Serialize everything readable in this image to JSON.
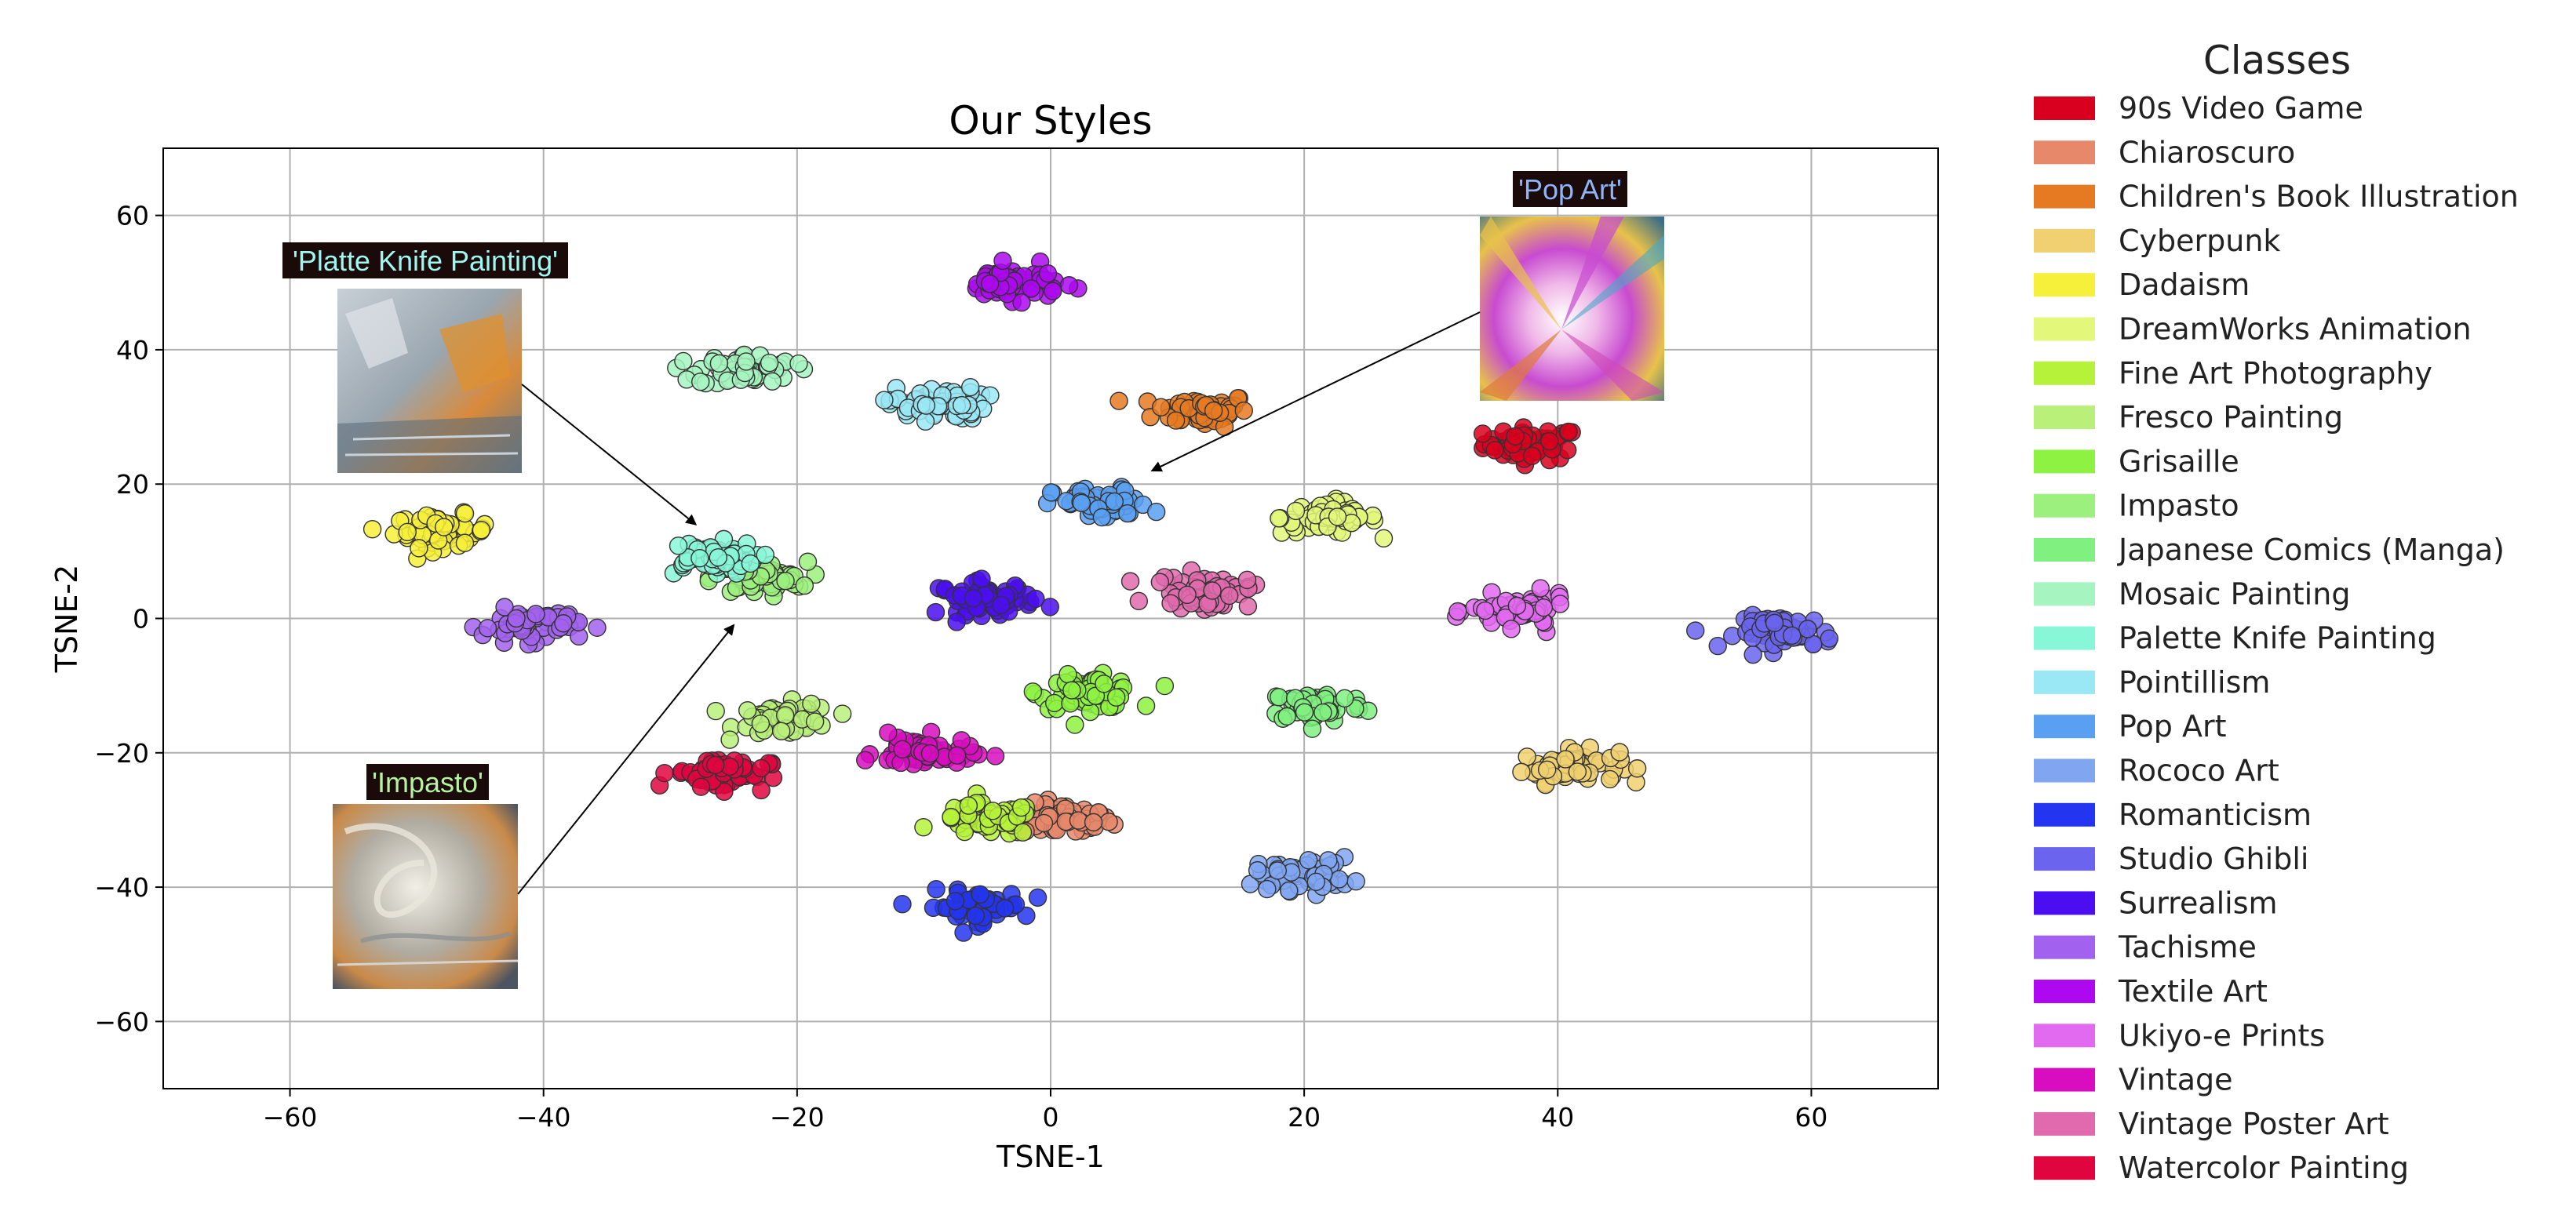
{
  "chart_data": {
    "type": "scatter",
    "title": "Our Styles",
    "xlabel": "TSNE-1",
    "ylabel": "TSNE-2",
    "xlim": [
      -70,
      70
    ],
    "ylim": [
      -70,
      70
    ],
    "xticks": [
      -60,
      -40,
      -20,
      0,
      20,
      40,
      60
    ],
    "yticks": [
      -60,
      -40,
      -20,
      0,
      20,
      40,
      60
    ],
    "xtick_labels": [
      "−60",
      "−40",
      "−20",
      "0",
      "20",
      "40",
      "60"
    ],
    "ytick_labels": [
      "−60",
      "−40",
      "−20",
      "0",
      "20",
      "40",
      "60"
    ],
    "grid": true,
    "legend": {
      "title": "Classes",
      "placement": "outside-right"
    },
    "series": [
      {
        "name": "90s Video Game",
        "color": "#d9001f",
        "cluster_centers": [
          [
            38,
            26
          ]
        ]
      },
      {
        "name": "Chiaroscuro",
        "color": "#e8886b",
        "cluster_centers": [
          [
            1,
            -30
          ]
        ]
      },
      {
        "name": "Children's Book Illustration",
        "color": "#e57a22",
        "cluster_centers": [
          [
            12,
            31
          ]
        ]
      },
      {
        "name": "Cyberpunk",
        "color": "#f0d070",
        "cluster_centers": [
          [
            41,
            -22
          ]
        ]
      },
      {
        "name": "Dadaism",
        "color": "#f7f03a",
        "cluster_centers": [
          [
            -48,
            13
          ]
        ]
      },
      {
        "name": "DreamWorks Animation",
        "color": "#e3f77a",
        "cluster_centers": [
          [
            22,
            15
          ]
        ]
      },
      {
        "name": "Fine Art Photography",
        "color": "#b6f23a",
        "cluster_centers": [
          [
            -5,
            -30
          ]
        ]
      },
      {
        "name": "Fresco Painting",
        "color": "#b8f07a",
        "cluster_centers": [
          [
            -21,
            -15
          ]
        ]
      },
      {
        "name": "Grisaille",
        "color": "#8ef242",
        "cluster_centers": [
          [
            3,
            -11
          ]
        ]
      },
      {
        "name": "Impasto",
        "color": "#9cf07e",
        "cluster_centers": [
          [
            -23,
            6
          ]
        ]
      },
      {
        "name": "Japanese Comics (Manga)",
        "color": "#80f080",
        "cluster_centers": [
          [
            21,
            -13
          ]
        ]
      },
      {
        "name": "Mosaic Painting",
        "color": "#a6f5c0",
        "cluster_centers": [
          [
            -24,
            37
          ]
        ]
      },
      {
        "name": "Palette Knife Painting",
        "color": "#88f7d8",
        "cluster_centers": [
          [
            -27,
            9
          ]
        ]
      },
      {
        "name": "Pointillism",
        "color": "#9ae8f5",
        "cluster_centers": [
          [
            -9,
            32
          ]
        ]
      },
      {
        "name": "Pop Art",
        "color": "#5aa0f2",
        "cluster_centers": [
          [
            4,
            17
          ]
        ]
      },
      {
        "name": "Rococo Art",
        "color": "#80a6f2",
        "cluster_centers": [
          [
            20,
            -38
          ]
        ]
      },
      {
        "name": "Romanticism",
        "color": "#2335f0",
        "cluster_centers": [
          [
            -6,
            -43
          ]
        ]
      },
      {
        "name": "Studio Ghibli",
        "color": "#6a64ef",
        "cluster_centers": [
          [
            58,
            -2
          ]
        ]
      },
      {
        "name": "Surrealism",
        "color": "#4a0ef0",
        "cluster_centers": [
          [
            -5,
            3
          ]
        ]
      },
      {
        "name": "Tachisme",
        "color": "#a262ef",
        "cluster_centers": [
          [
            -41,
            -1
          ]
        ]
      },
      {
        "name": "Textile Art",
        "color": "#ad08f0",
        "cluster_centers": [
          [
            -3,
            50
          ]
        ]
      },
      {
        "name": "Ukiyo-e Prints",
        "color": "#e26af0",
        "cluster_centers": [
          [
            37,
            1
          ]
        ]
      },
      {
        "name": "Vintage",
        "color": "#d80dc0",
        "cluster_centers": [
          [
            -10,
            -20
          ]
        ]
      },
      {
        "name": "Vintage Poster Art",
        "color": "#e06aad",
        "cluster_centers": [
          [
            12,
            4
          ]
        ]
      },
      {
        "name": "Watercolor Painting",
        "color": "#e0053f",
        "cluster_centers": [
          [
            -26,
            -23
          ]
        ]
      }
    ],
    "annotations": [
      {
        "text": "'Platte Knife Painting'",
        "text_color": "#9ff8f0",
        "arrow_to": [
          -28,
          14
        ],
        "thumbnail": "palette-knife-painting-sample"
      },
      {
        "text": "'Impasto'",
        "text_color": "#b6f2a0",
        "arrow_to": [
          -25,
          -1
        ],
        "thumbnail": "impasto-sample"
      },
      {
        "text": "'Pop Art'",
        "text_color": "#8fb4f8",
        "arrow_to": [
          8,
          22
        ],
        "thumbnail": "pop-art-sample"
      }
    ]
  }
}
